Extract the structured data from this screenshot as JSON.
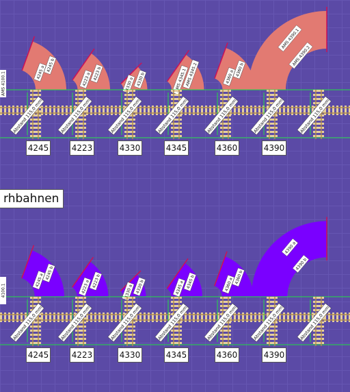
{
  "section_title": "rhbahnen",
  "colors": {
    "background": "#5b4aa6",
    "grid": "#6656b2",
    "top_track_fill": "#e27a72",
    "bottom_track_fill": "#7a00ff",
    "track_line": "#cc1155",
    "green_line": "#22dd44",
    "sleeper": "#e6cf9c",
    "rail": "#b08c4c"
  },
  "top_row": {
    "codes": [
      "4245",
      "4223",
      "4330",
      "4345",
      "4360",
      "4390"
    ],
    "distance_label": "Abstand 115,0 mm",
    "edge_label": "AMS 4100.1",
    "pieces": [
      {
        "code": "4245",
        "labels": [
          "4245 a",
          "4245 b"
        ]
      },
      {
        "code": "4223",
        "labels": [
          "4223 a",
          "4223 b"
        ]
      },
      {
        "code": "4330",
        "labels": [
          "4330 a",
          "4330 b"
        ]
      },
      {
        "code": "4345",
        "labels": [
          "AMS 4345.1",
          "AMS 4345.2"
        ]
      },
      {
        "code": "4360",
        "labels": [
          "4360 a",
          "4360 b"
        ]
      },
      {
        "code": "4390",
        "labels": [
          "AMS 4390.1",
          "AMS 4390.2"
        ]
      }
    ]
  },
  "bottom_row": {
    "codes": [
      "4245",
      "4223",
      "4330",
      "4345",
      "4360",
      "4390"
    ],
    "distance_label": "Abstand 115,0 mm",
    "edge_label": "4100.1",
    "pieces": [
      {
        "code": "4245",
        "labels": [
          "4245 a",
          "4245 b"
        ]
      },
      {
        "code": "4223",
        "labels": [
          "4223 a",
          "4223 b"
        ]
      },
      {
        "code": "4330",
        "labels": [
          "4330 a",
          "4330 b"
        ]
      },
      {
        "code": "4345",
        "labels": [
          "4345 a",
          "4345 b"
        ]
      },
      {
        "code": "4360",
        "labels": [
          "4360 a",
          "4360 b"
        ]
      },
      {
        "code": "4390",
        "labels": [
          "4390 a",
          "4390 b"
        ]
      }
    ]
  }
}
